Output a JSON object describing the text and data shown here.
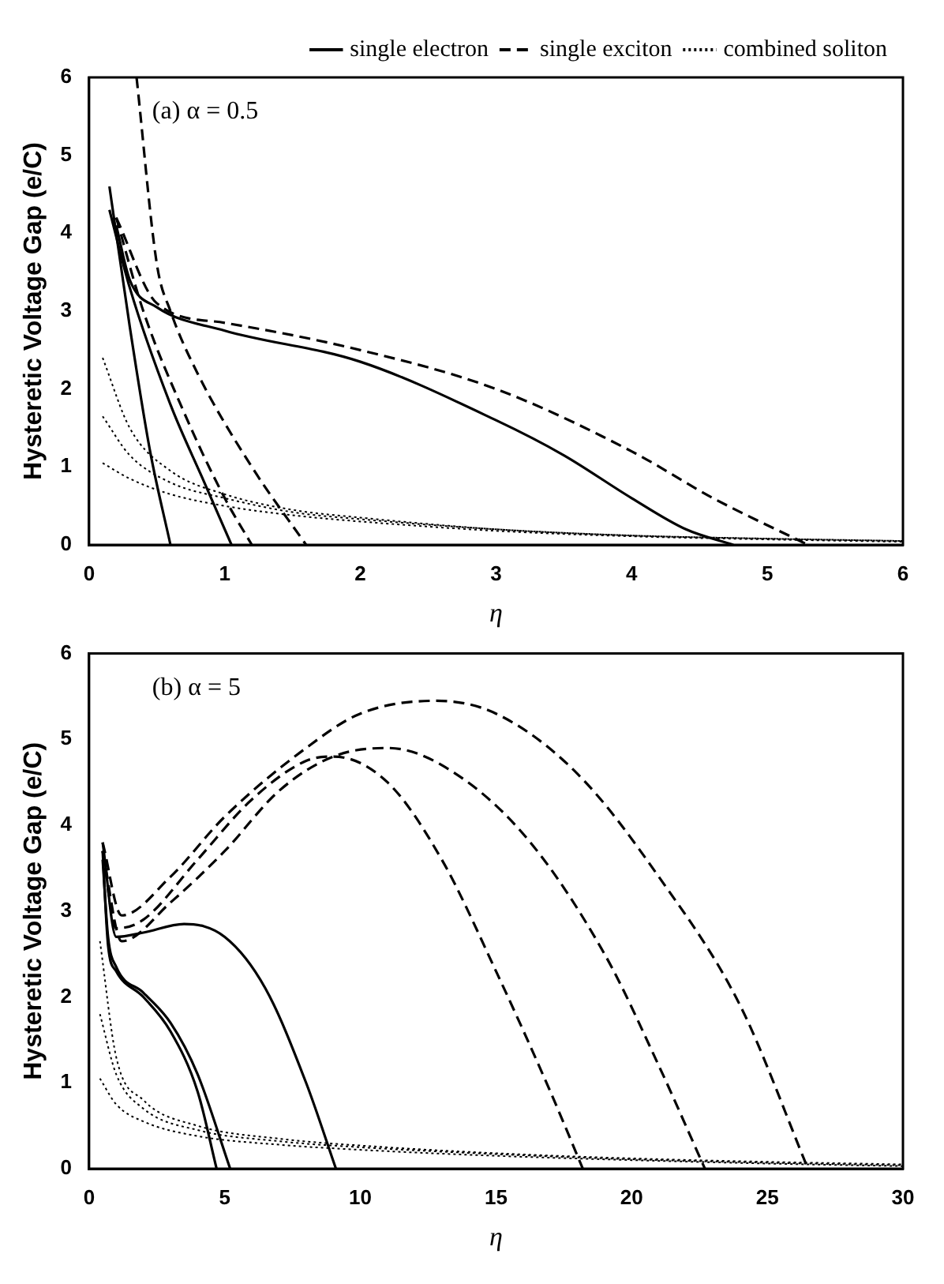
{
  "chart_data": [
    {
      "type": "line",
      "annotations": [
        "(a) α = 0.5"
      ],
      "xlabel": "η",
      "ylabel": "Hysteretic Voltage Gap (e/C)",
      "xlim": [
        0,
        6
      ],
      "ylim": [
        0,
        6
      ],
      "xticks": [
        0,
        1,
        2,
        3,
        4,
        5,
        6
      ],
      "yticks": [
        0,
        1,
        2,
        3,
        4,
        5,
        6
      ],
      "grid": false,
      "legend": "top right",
      "marker": "none",
      "series": [
        {
          "name": "single electron",
          "color": "#000000",
          "line_style": "solid",
          "x": [
            0.15,
            0.3,
            0.45,
            0.6
          ],
          "values": [
            4.6,
            2.8,
            1.2,
            0
          ]
        },
        {
          "color": "#000000",
          "line_style": "solid",
          "x": [
            0.15,
            0.3,
            0.6,
            0.85,
            1.05
          ],
          "values": [
            4.3,
            3.3,
            1.8,
            0.8,
            0
          ]
        },
        {
          "color": "#000000",
          "line_style": "solid",
          "x": [
            0.2,
            0.3,
            0.5,
            1,
            2,
            3,
            3.5,
            4,
            4.4,
            4.75
          ],
          "values": [
            4.1,
            3.4,
            3.05,
            2.75,
            2.35,
            1.6,
            1.15,
            0.6,
            0.2,
            0
          ]
        },
        {
          "name": "single exciton",
          "color": "#000000",
          "line_style": "dashed",
          "x": [
            0.2,
            0.4,
            0.7,
            1,
            1.2
          ],
          "values": [
            4.2,
            3.0,
            1.7,
            0.6,
            0
          ]
        },
        {
          "color": "#000000",
          "line_style": "dashed",
          "x": [
            0.35,
            0.5,
            0.6,
            0.8,
            1.2,
            1.6
          ],
          "values": [
            6,
            3.6,
            3.0,
            2.2,
            1.0,
            0
          ]
        },
        {
          "color": "#000000",
          "line_style": "dashed",
          "x": [
            0.2,
            0.5,
            1,
            2,
            3,
            4,
            4.6,
            5.3
          ],
          "values": [
            4.2,
            3.1,
            2.85,
            2.5,
            2.0,
            1.2,
            0.6,
            0
          ]
        },
        {
          "name": "combined soliton",
          "color": "#000000",
          "line_style": "dotted",
          "x": [
            0.1,
            0.3,
            0.6,
            1,
            1.5,
            2,
            3,
            4,
            5,
            6
          ],
          "values": [
            2.4,
            1.5,
            0.95,
            0.65,
            0.45,
            0.35,
            0.2,
            0.12,
            0.08,
            0.05
          ]
        },
        {
          "color": "#000000",
          "line_style": "dotted",
          "x": [
            0.1,
            0.3,
            0.6,
            1,
            1.5,
            2,
            3,
            4,
            5,
            6
          ],
          "values": [
            1.65,
            1.15,
            0.8,
            0.6,
            0.42,
            0.33,
            0.2,
            0.12,
            0.08,
            0.05
          ]
        },
        {
          "color": "#000000",
          "line_style": "dotted",
          "x": [
            0.1,
            0.3,
            0.6,
            1,
            1.5,
            2,
            3,
            4,
            5,
            6
          ],
          "values": [
            1.05,
            0.85,
            0.65,
            0.5,
            0.38,
            0.3,
            0.18,
            0.11,
            0.07,
            0.04
          ]
        }
      ]
    },
    {
      "type": "line",
      "annotations": [
        "(b) α = 5"
      ],
      "xlabel": "η",
      "ylabel": "Hysteretic Voltage Gap (e/C)",
      "xlim": [
        0,
        30
      ],
      "ylim": [
        0,
        6
      ],
      "xticks": [
        0,
        5,
        10,
        15,
        20,
        25,
        30
      ],
      "yticks": [
        0,
        1,
        2,
        3,
        4,
        5,
        6
      ],
      "grid": false,
      "marker": "none",
      "series": [
        {
          "color": "#000000",
          "line_style": "solid",
          "x": [
            0.5,
            0.7,
            1,
            2,
            3,
            4,
            4.7
          ],
          "values": [
            3.7,
            2.6,
            2.3,
            2.0,
            1.6,
            0.9,
            0
          ]
        },
        {
          "color": "#000000",
          "line_style": "solid",
          "x": [
            0.5,
            0.7,
            1,
            2,
            3,
            4,
            5.2
          ],
          "values": [
            3.6,
            2.7,
            2.35,
            2.05,
            1.7,
            1.1,
            0
          ]
        },
        {
          "color": "#000000",
          "line_style": "solid",
          "x": [
            0.5,
            1,
            2,
            3.5,
            5,
            6.5,
            8,
            9.1
          ],
          "values": [
            3.8,
            2.7,
            2.75,
            2.85,
            2.7,
            2.1,
            1.0,
            0
          ]
        },
        {
          "color": "#000000",
          "line_style": "dashed",
          "x": [
            0.5,
            1,
            2,
            4,
            6,
            8,
            9,
            11,
            13,
            15,
            17,
            18.2
          ],
          "values": [
            3.7,
            2.8,
            2.9,
            3.6,
            4.3,
            4.75,
            4.8,
            4.5,
            3.6,
            2.3,
            0.9,
            0
          ]
        },
        {
          "color": "#000000",
          "line_style": "dashed",
          "x": [
            0.5,
            1.2,
            3,
            5,
            7,
            9,
            11,
            13,
            16,
            19,
            21,
            22.7
          ],
          "values": [
            3.7,
            2.65,
            3.1,
            3.7,
            4.4,
            4.8,
            4.9,
            4.7,
            3.9,
            2.5,
            1.2,
            0
          ]
        },
        {
          "color": "#000000",
          "line_style": "dashed",
          "x": [
            0.5,
            1.2,
            3,
            5,
            8,
            10,
            12.8,
            15,
            18,
            21,
            24,
            26.5
          ],
          "values": [
            3.8,
            2.95,
            3.4,
            4.1,
            4.9,
            5.3,
            5.45,
            5.3,
            4.6,
            3.4,
            1.9,
            0
          ]
        },
        {
          "color": "#000000",
          "line_style": "dotted",
          "x": [
            0.4,
            1,
            2,
            4,
            7,
            10,
            15,
            20,
            25,
            30
          ],
          "values": [
            2.65,
            1.3,
            0.8,
            0.5,
            0.35,
            0.27,
            0.18,
            0.12,
            0.08,
            0.05
          ]
        },
        {
          "color": "#000000",
          "line_style": "dotted",
          "x": [
            0.4,
            1,
            2,
            4,
            7,
            10,
            15,
            20,
            25,
            30
          ],
          "values": [
            1.8,
            1.1,
            0.7,
            0.45,
            0.32,
            0.25,
            0.17,
            0.11,
            0.07,
            0.04
          ]
        },
        {
          "color": "#000000",
          "line_style": "dotted",
          "x": [
            0.4,
            1,
            2,
            4,
            7,
            10,
            15,
            20,
            25,
            30
          ],
          "values": [
            1.05,
            0.75,
            0.55,
            0.38,
            0.28,
            0.22,
            0.15,
            0.1,
            0.06,
            0.03
          ]
        }
      ]
    }
  ]
}
